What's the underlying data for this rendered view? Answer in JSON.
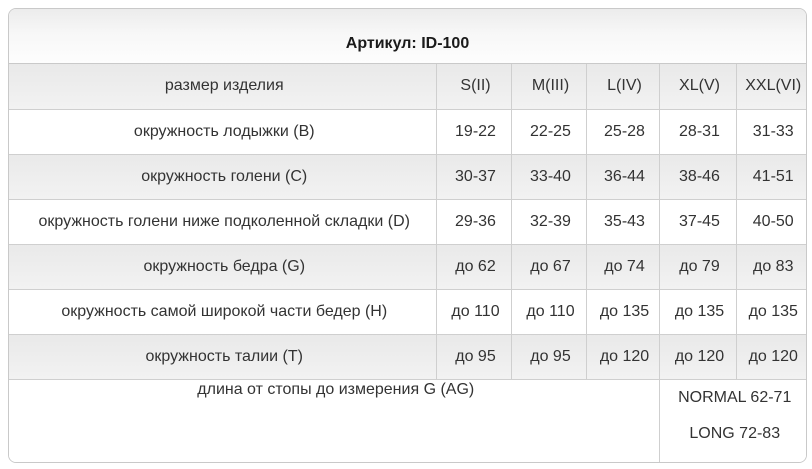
{
  "title": "Артикул: ID-100",
  "table": {
    "header": {
      "label": "размер изделия",
      "sizes": [
        "S(II)",
        "M(III)",
        "L(IV)",
        "XL(V)",
        "XXL(VI)"
      ]
    },
    "rows": [
      {
        "label": "окружность лодыжки (B)",
        "values": [
          "19-22",
          "22-25",
          "25-28",
          "28-31",
          "31-33"
        ]
      },
      {
        "label": "окружность голени (C)",
        "values": [
          "30-37",
          "33-40",
          "36-44",
          "38-46",
          "41-51"
        ]
      },
      {
        "label": "окружность голени ниже подколенной складки (D)",
        "values": [
          "29-36",
          "32-39",
          "35-43",
          "37-45",
          "40-50"
        ]
      },
      {
        "label": "окружность бедра (G)",
        "values": [
          "до 62",
          "до 67",
          "до 74",
          "до 79",
          "до 83"
        ]
      },
      {
        "label": "окружность самой широкой части бедер (H)",
        "values": [
          "до 110",
          "до 110",
          "до 135",
          "до 135",
          "до 135"
        ]
      },
      {
        "label": "окружность талии (T)",
        "values": [
          "до 95",
          "до 95",
          "до 120",
          "до 120",
          "до 120"
        ]
      }
    ],
    "footer": {
      "label": "длина от стопы до измерения G (AG)",
      "values": [
        "NORMAL 62-71",
        "LONG 72-83"
      ]
    }
  },
  "colors": {
    "card_border": "#c9c9c9",
    "cell_border": "#cfcfcf",
    "row_gray": "#ededed",
    "row_white": "#ffffff",
    "text": "#333333",
    "title_text": "#1a1a1a"
  }
}
